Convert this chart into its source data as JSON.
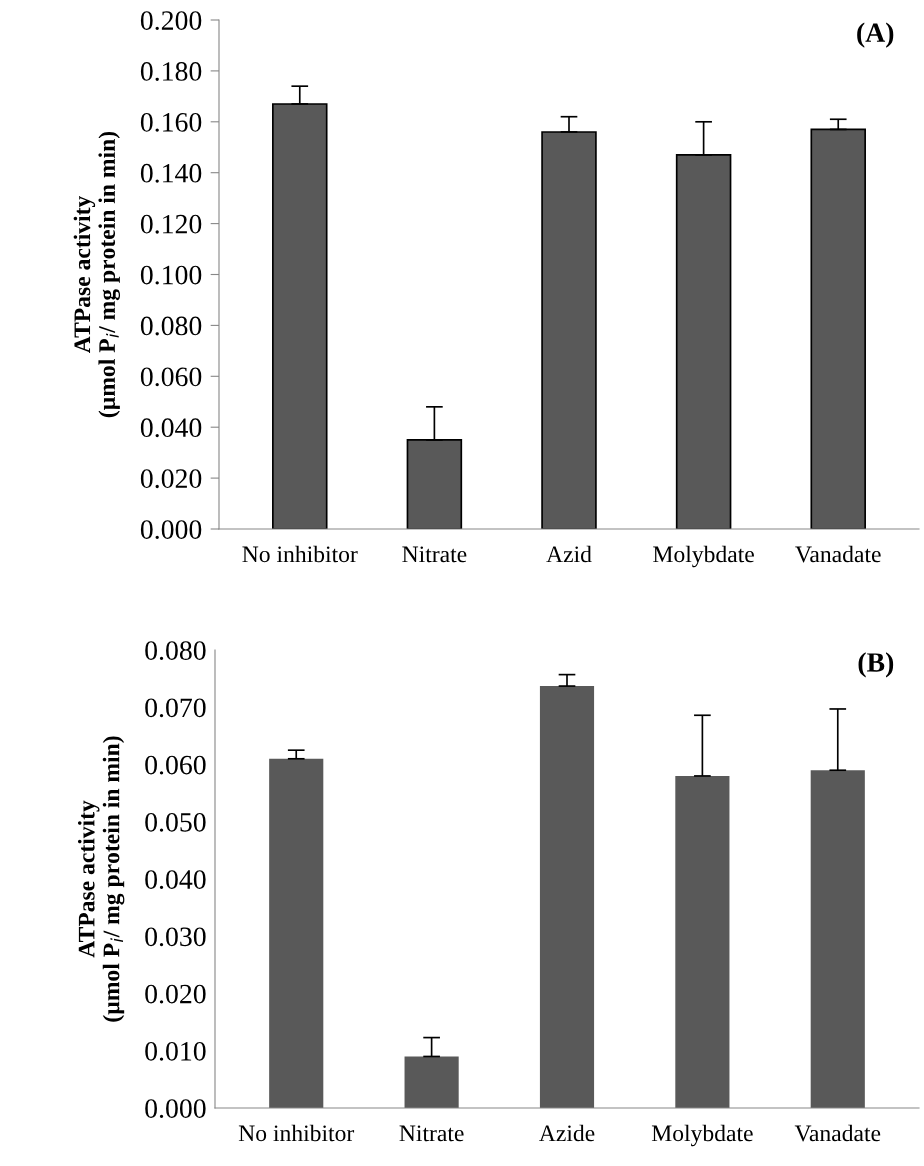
{
  "chart_data": [
    {
      "type": "bar",
      "ylabel": "ATPase activity\n(µmol P$_{i}$/ mg protein in min)",
      "annotations": [
        "(A)"
      ],
      "categories": [
        "No inhibitor",
        "Nitrate",
        "Azid",
        "Molybdate",
        "Vanadate"
      ],
      "values": [
        0.167,
        0.035,
        0.156,
        0.147,
        0.157
      ],
      "color": "#595959",
      "errors": [
        [
          0.167,
          0.174
        ],
        [
          0.035,
          0.048
        ],
        [
          0.156,
          0.162
        ],
        [
          0.147,
          0.16
        ],
        [
          0.157,
          0.161
        ]
      ],
      "ylim": [
        0,
        0.2
      ],
      "yticks": [
        {
          "value": 0,
          "label": "0.000"
        },
        {
          "value": 0.02,
          "label": "0.020"
        },
        {
          "value": 0.04,
          "label": "0.040"
        },
        {
          "value": 0.06,
          "label": "0.060"
        },
        {
          "value": 0.08,
          "label": "0.080"
        },
        {
          "value": 0.1,
          "label": "0.100"
        },
        {
          "value": 0.12,
          "label": "0.120"
        },
        {
          "value": 0.14,
          "label": "0.140"
        },
        {
          "value": 0.16,
          "label": "0.160"
        },
        {
          "value": 0.18,
          "label": "0.180"
        },
        {
          "value": 0.2,
          "label": "0.200"
        }
      ]
    },
    {
      "type": "bar",
      "ylabel": "ATPase activity\n(µmol P$_{i}$/ mg protein in min)",
      "annotations": [
        "(B)"
      ],
      "categories": [
        "No inhibitor",
        "Nitrate",
        "Azide",
        "Molybdate",
        "Vanadate"
      ],
      "values": [
        0.061,
        0.009,
        0.0737,
        0.058,
        0.059
      ],
      "color": "#595959",
      "errors": [
        [
          0.061,
          0.0625
        ],
        [
          0.009,
          0.0123
        ],
        [
          0.0737,
          0.0757
        ],
        [
          0.058,
          0.0686
        ],
        [
          0.059,
          0.0697
        ]
      ],
      "ylim": [
        0,
        0.08
      ],
      "yticks": [
        {
          "value": 0,
          "label": "0.000"
        },
        {
          "value": 0.01,
          "label": "0.010"
        },
        {
          "value": 0.02,
          "label": "0.020"
        },
        {
          "value": 0.03,
          "label": "0.030"
        },
        {
          "value": 0.04,
          "label": "0.040"
        },
        {
          "value": 0.05,
          "label": "0.050"
        },
        {
          "value": 0.06,
          "label": "0.060"
        },
        {
          "value": 0.07,
          "label": "0.070"
        },
        {
          "value": 0.08,
          "label": "0.080"
        }
      ]
    }
  ]
}
